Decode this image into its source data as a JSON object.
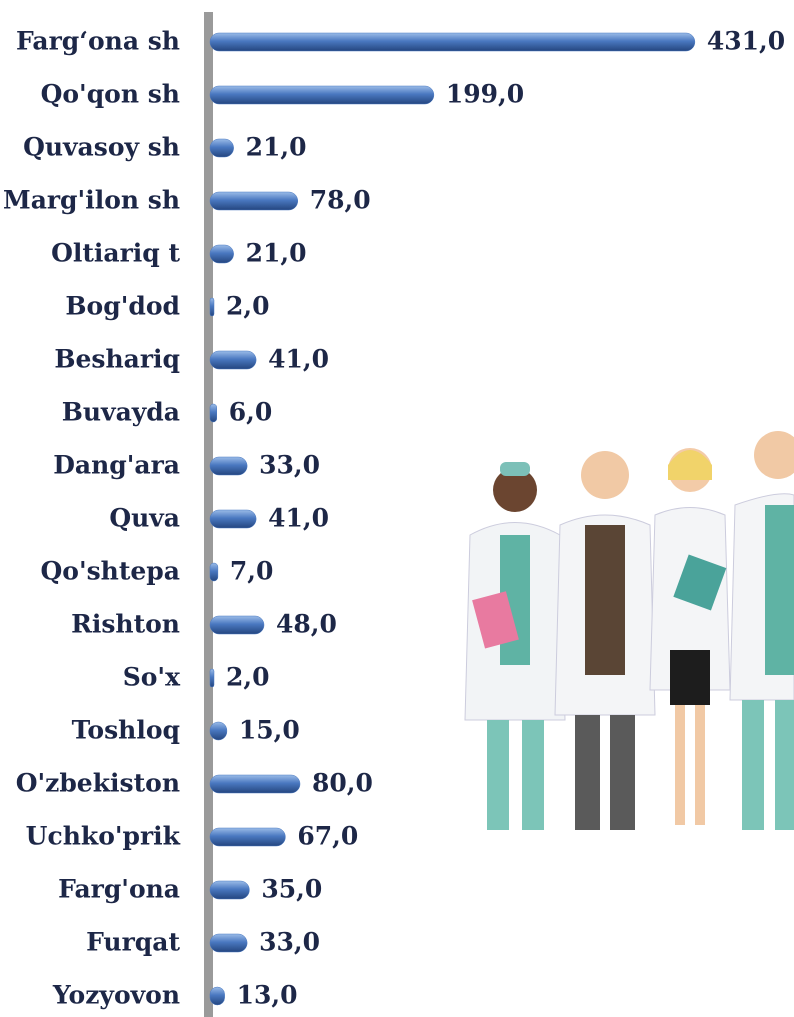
{
  "chart_data": {
    "type": "bar",
    "orientation": "horizontal",
    "categories": [
      "Farg‘ona sh",
      "Qo'qon sh",
      "Quvasoy sh",
      "Marg'ilon sh",
      "Oltiariq t",
      "Bog'dod",
      "Beshariq",
      "Buvayda",
      "Dang'ara",
      "Quva",
      "Qo'shtepa",
      "Rishton",
      "So'x",
      "Toshloq",
      "O'zbekiston",
      "Uchko'prik",
      "Farg'ona",
      "Furqat",
      "Yozyovon"
    ],
    "values": [
      431,
      199,
      21,
      78,
      21,
      2,
      41,
      6,
      33,
      41,
      7,
      48,
      2,
      15,
      80,
      67,
      35,
      33,
      13
    ],
    "value_labels": [
      "431,0",
      "199,0",
      "21,0",
      "78,0",
      "21,0",
      "2,0",
      "41,0",
      "6,0",
      "33,0",
      "41,0",
      "7,0",
      "48,0",
      "2,0",
      "15,0",
      "80,0",
      "67,0",
      "35,0",
      "33,0",
      "13,0"
    ],
    "color": "#4a78c0"
  }
}
